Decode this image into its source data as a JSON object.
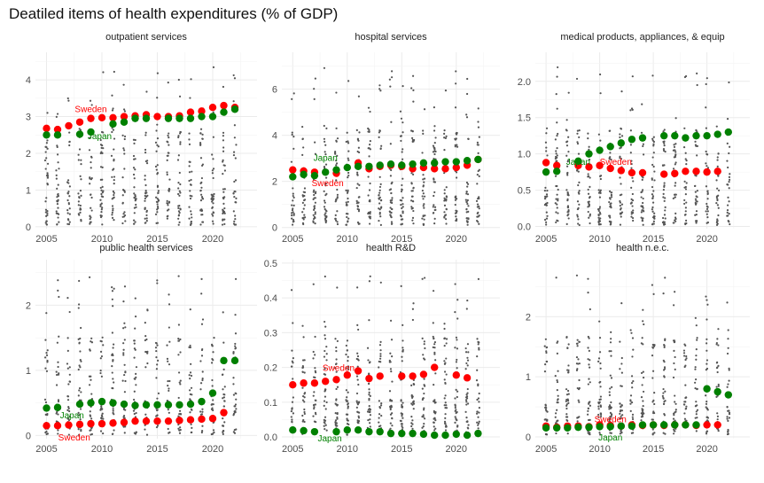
{
  "chart_data": {
    "type": "scatter",
    "title": "Deatiled items of health expenditures (% of GDP)",
    "xlabel": "",
    "ylabel": "",
    "x_ticks": [
      2005,
      2010,
      2015,
      2020
    ],
    "xlim": [
      2004,
      2024
    ],
    "grid": true,
    "legend": "none",
    "colors": {
      "Sweden": "#ff0000",
      "Japan": "#008000",
      "background": "#555555"
    },
    "panels": [
      {
        "title": "outpatient services",
        "ylim": [
          -0.05,
          4.75
        ],
        "y_ticks": [
          0,
          1,
          2,
          3,
          4
        ],
        "series": [
          {
            "name": "Sweden",
            "x": [
              2005,
              2006,
              2007,
              2008,
              2009,
              2010,
              2011,
              2012,
              2013,
              2014,
              2015,
              2016,
              2017,
              2018,
              2019,
              2020,
              2021,
              2022
            ],
            "y": [
              2.68,
              2.65,
              2.75,
              2.85,
              2.95,
              2.97,
              2.97,
              3.0,
              3.02,
              3.05,
              3.0,
              3.0,
              3.02,
              3.12,
              3.15,
              3.25,
              3.3,
              3.25
            ]
          },
          {
            "name": "Japan",
            "x": [
              2005,
              2006,
              2008,
              2009,
              2011,
              2012,
              2013,
              2014,
              2016,
              2017,
              2018,
              2019,
              2020,
              2021,
              2022
            ],
            "y": [
              2.5,
              2.5,
              2.52,
              2.58,
              2.8,
              2.85,
              2.95,
              2.95,
              2.95,
              2.95,
              2.95,
              3.0,
              3.0,
              3.12,
              3.2
            ]
          }
        ],
        "labels": [
          {
            "text": "Sweden",
            "series": "Sweden",
            "x": 2009.0,
            "y": 3.22
          },
          {
            "text": "Japan",
            "series": "Japan",
            "x": 2009.8,
            "y": 2.48
          }
        ]
      },
      {
        "title": "hospital services",
        "ylim": [
          -0.05,
          7.6
        ],
        "y_ticks": [
          0,
          2,
          4,
          6
        ],
        "series": [
          {
            "name": "Sweden",
            "x": [
              2005,
              2006,
              2007,
              2009,
              2011,
              2012,
              2013,
              2014,
              2015,
              2016,
              2017,
              2018,
              2019,
              2020,
              2021,
              2022
            ],
            "y": [
              2.5,
              2.45,
              2.4,
              2.35,
              2.8,
              2.55,
              2.65,
              2.7,
              2.65,
              2.55,
              2.6,
              2.55,
              2.55,
              2.6,
              2.7,
              2.95
            ]
          },
          {
            "name": "Japan",
            "x": [
              2005,
              2006,
              2007,
              2008,
              2009,
              2010,
              2011,
              2012,
              2013,
              2014,
              2015,
              2016,
              2017,
              2018,
              2019,
              2020,
              2021,
              2022
            ],
            "y": [
              2.2,
              2.3,
              2.25,
              2.4,
              2.5,
              2.6,
              2.65,
              2.65,
              2.7,
              2.75,
              2.7,
              2.75,
              2.8,
              2.8,
              2.85,
              2.85,
              2.9,
              2.95
            ]
          }
        ],
        "labels": [
          {
            "text": "Japan",
            "series": "Japan",
            "x": 2008.0,
            "y": 3.05
          },
          {
            "text": "Sweden",
            "series": "Sweden",
            "x": 2008.2,
            "y": 1.95
          }
        ]
      },
      {
        "title": "medical products, appliances, & equip",
        "ylim": [
          -0.03,
          2.4
        ],
        "y_ticks": [
          0.0,
          0.5,
          1.0,
          1.5,
          2.0
        ],
        "series": [
          {
            "name": "Sweden",
            "x": [
              2005,
              2006,
              2008,
              2009,
              2010,
              2011,
              2012,
              2013,
              2014,
              2016,
              2017,
              2018,
              2019,
              2020,
              2021
            ],
            "y": [
              0.88,
              0.84,
              0.84,
              0.82,
              0.84,
              0.8,
              0.77,
              0.74,
              0.74,
              0.72,
              0.73,
              0.76,
              0.76,
              0.75,
              0.76
            ]
          },
          {
            "name": "Japan",
            "x": [
              2005,
              2006,
              2008,
              2009,
              2010,
              2011,
              2012,
              2013,
              2014,
              2016,
              2017,
              2018,
              2019,
              2020,
              2021,
              2022
            ],
            "y": [
              0.75,
              0.76,
              0.9,
              1.0,
              1.05,
              1.1,
              1.15,
              1.2,
              1.22,
              1.25,
              1.25,
              1.22,
              1.25,
              1.25,
              1.27,
              1.3
            ]
          }
        ],
        "labels": [
          {
            "text": "Japan",
            "series": "Japan",
            "x": 2008.0,
            "y": 0.9
          },
          {
            "text": "Sweden",
            "series": "Sweden",
            "x": 2011.5,
            "y": 0.9
          }
        ]
      },
      {
        "title": "public health services",
        "ylim": [
          -0.05,
          2.7
        ],
        "y_ticks": [
          0,
          1,
          2
        ],
        "series": [
          {
            "name": "Sweden",
            "x": [
              2005,
              2006,
              2007,
              2008,
              2009,
              2010,
              2011,
              2012,
              2013,
              2014,
              2015,
              2016,
              2017,
              2018,
              2019,
              2020,
              2021
            ],
            "y": [
              0.15,
              0.15,
              0.16,
              0.17,
              0.18,
              0.18,
              0.19,
              0.2,
              0.22,
              0.22,
              0.22,
              0.22,
              0.23,
              0.24,
              0.25,
              0.26,
              0.35
            ]
          },
          {
            "name": "Japan",
            "x": [
              2005,
              2006,
              2008,
              2009,
              2010,
              2011,
              2012,
              2013,
              2014,
              2015,
              2016,
              2017,
              2018,
              2019,
              2020,
              2021,
              2022
            ],
            "y": [
              0.42,
              0.43,
              0.48,
              0.5,
              0.52,
              0.5,
              0.48,
              0.46,
              0.47,
              0.47,
              0.47,
              0.47,
              0.48,
              0.52,
              0.65,
              1.15,
              1.15
            ]
          }
        ],
        "labels": [
          {
            "text": "Japan",
            "series": "Japan",
            "x": 2007.3,
            "y": 0.32
          },
          {
            "text": "Sweden",
            "series": "Sweden",
            "x": 2007.5,
            "y": -0.02
          }
        ]
      },
      {
        "title": "health R&D",
        "ylim": [
          -0.005,
          0.51
        ],
        "y_ticks": [
          0.0,
          0.1,
          0.2,
          0.3,
          0.4,
          0.5
        ],
        "series": [
          {
            "name": "Sweden",
            "x": [
              2005,
              2006,
              2007,
              2008,
              2009,
              2010,
              2011,
              2012,
              2013,
              2015,
              2016,
              2017,
              2018,
              2020,
              2021
            ],
            "y": [
              0.15,
              0.155,
              0.155,
              0.16,
              0.165,
              0.178,
              0.19,
              0.168,
              0.175,
              0.175,
              0.175,
              0.18,
              0.2,
              0.178,
              0.17
            ]
          },
          {
            "name": "Japan",
            "x": [
              2005,
              2006,
              2007,
              2009,
              2010,
              2011,
              2012,
              2013,
              2014,
              2015,
              2016,
              2017,
              2018,
              2019,
              2020,
              2021,
              2022
            ],
            "y": [
              0.02,
              0.018,
              0.015,
              0.015,
              0.02,
              0.02,
              0.015,
              0.015,
              0.01,
              0.01,
              0.01,
              0.008,
              0.005,
              0.005,
              0.008,
              0.005,
              0.01
            ]
          }
        ],
        "labels": [
          {
            "text": "Sweden",
            "series": "Sweden",
            "x": 2009.2,
            "y": 0.2
          },
          {
            "text": "Japan",
            "series": "Japan",
            "x": 2008.4,
            "y": -0.003
          }
        ]
      },
      {
        "title": "health n.e.c.",
        "ylim": [
          -0.03,
          2.95
        ],
        "y_ticks": [
          0,
          1,
          2
        ],
        "series": [
          {
            "name": "Sweden",
            "x": [
              2005,
              2006,
              2007,
              2008,
              2009,
              2010,
              2011,
              2012,
              2013,
              2014,
              2015,
              2016,
              2017,
              2018,
              2019,
              2020,
              2021
            ],
            "y": [
              0.18,
              0.16,
              0.18,
              0.18,
              0.17,
              0.2,
              0.19,
              0.18,
              0.2,
              0.19,
              0.2,
              0.19,
              0.2,
              0.2,
              0.19,
              0.2,
              0.2
            ]
          },
          {
            "name": "Japan",
            "x": [
              2005,
              2006,
              2007,
              2008,
              2009,
              2010,
              2011,
              2012,
              2013,
              2014,
              2015,
              2016,
              2017,
              2018,
              2019,
              2020,
              2021,
              2022
            ],
            "y": [
              0.15,
              0.15,
              0.15,
              0.16,
              0.16,
              0.17,
              0.17,
              0.18,
              0.18,
              0.2,
              0.2,
              0.2,
              0.2,
              0.2,
              0.2,
              0.8,
              0.75,
              0.7
            ]
          }
        ],
        "labels": [
          {
            "text": "Sweden",
            "series": "Sweden",
            "x": 2011.0,
            "y": 0.3
          },
          {
            "text": "Japan",
            "series": "Japan",
            "x": 2011.0,
            "y": 0.0
          }
        ]
      }
    ]
  }
}
